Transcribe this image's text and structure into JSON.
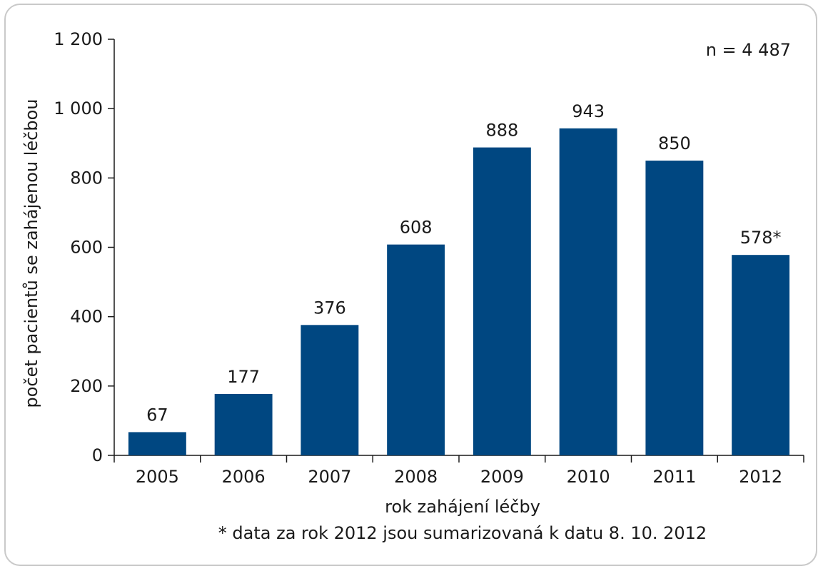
{
  "chart_data": {
    "type": "bar",
    "categories": [
      "2005",
      "2006",
      "2007",
      "2008",
      "2009",
      "2010",
      "2011",
      "2012"
    ],
    "values": [
      67,
      177,
      376,
      608,
      888,
      943,
      850,
      578
    ],
    "value_labels": [
      "67",
      "177",
      "376",
      "608",
      "888",
      "943",
      "850",
      "578*"
    ],
    "xlabel": "rok zahájení léčby",
    "ylabel": "počet pacientů se zahájenou léčbou",
    "ylim": [
      0,
      1200
    ],
    "yticks": [
      0,
      200,
      400,
      600,
      800,
      1000,
      1200
    ],
    "ytick_labels": [
      "0",
      "200",
      "400",
      "600",
      "800",
      "1 000",
      "1 200"
    ],
    "annotation": "n = 4 487",
    "footnote": "* data za rok 2012 jsou sumarizovaná k datu 8. 10. 2012",
    "grid": false,
    "bar_color": "#004781"
  }
}
